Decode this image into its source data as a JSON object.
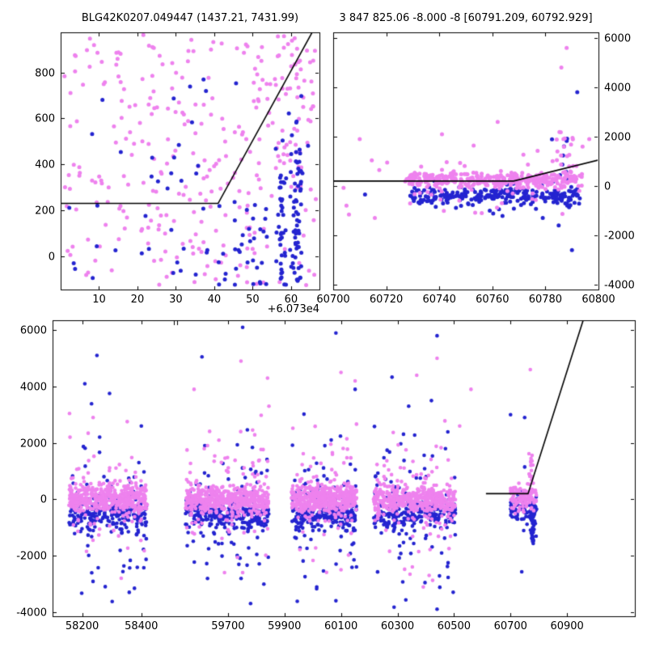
{
  "series_colors": {
    "pink": "#EE82EE",
    "blue": "#2424D0",
    "line": "#000000"
  },
  "chart_data": [
    {
      "id": "zoom-recent-season",
      "type": "scatter",
      "title": "BLG42K0207.049447 (1437.21, 7431.99)",
      "x_offset_label": "+6.073e4",
      "xlim": [
        0,
        67.4
      ],
      "ylim": [
        -145,
        975
      ],
      "xticks": [
        10,
        20,
        30,
        40,
        50,
        60
      ],
      "yticks": [
        0,
        200,
        400,
        600,
        800
      ],
      "ytick_side": "left",
      "model_line": [
        [
          0,
          230
        ],
        [
          41,
          230
        ],
        [
          65.5,
          975
        ]
      ],
      "clusters": [
        {
          "color": "pink",
          "n": 240,
          "xu": [
            0.5,
            66.5
          ],
          "yu": [
            -140,
            965
          ]
        },
        {
          "color": "pink",
          "n": 60,
          "xu": [
            50,
            66
          ],
          "yu": [
            280,
            965
          ]
        },
        {
          "color": "pink",
          "n": 20,
          "xu": [
            36,
            50
          ],
          "yu": [
            120,
            560
          ]
        },
        {
          "color": "blue",
          "n": 28,
          "xu": [
            1,
            40
          ],
          "yu": [
            -140,
            430
          ]
        },
        {
          "color": "blue",
          "n": 10,
          "xu": [
            4,
            46
          ],
          "yu": [
            450,
            790
          ]
        },
        {
          "color": "blue",
          "n": 38,
          "xg": [
            57.3,
            0.7
          ],
          "yu": [
            -140,
            360
          ]
        },
        {
          "color": "blue",
          "n": 55,
          "xg": [
            61.6,
            0.8
          ],
          "yu": [
            -120,
            430
          ]
        },
        {
          "color": "blue",
          "n": 34,
          "xu": [
            41,
            54
          ],
          "yu": [
            -145,
            250
          ]
        },
        {
          "color": "blue",
          "n": 12,
          "xu": [
            55,
            65.5
          ],
          "yu": [
            430,
            700
          ]
        }
      ]
    },
    {
      "id": "zoom-flux-window",
      "type": "scatter",
      "title": "3 847 825.06 -8.000 -8 [60791.209, 60792.929]",
      "xlim": [
        60700,
        60800
      ],
      "ylim": [
        -4200,
        6230
      ],
      "xticks": [
        60700,
        60720,
        60740,
        60760,
        60780,
        60800
      ],
      "yticks": [
        -4000,
        -2000,
        0,
        2000,
        4000,
        6000
      ],
      "ytick_side": "right",
      "model_line": [
        [
          60700,
          200
        ],
        [
          60768,
          200
        ],
        [
          60800,
          1050
        ]
      ],
      "clusters": [
        {
          "color": "blue",
          "n": 215,
          "xu": [
            60729,
            60793
          ],
          "yg": [
            -370,
            180
          ]
        },
        {
          "color": "blue",
          "n": 28,
          "xu": [
            60738,
            60793
          ],
          "yg": [
            -520,
            420
          ]
        },
        {
          "color": "blue",
          "n": 20,
          "xg": [
            60787,
            2.5
          ],
          "yu": [
            -900,
            2000
          ]
        },
        {
          "color": "blue",
          "points": [
            [
              60790,
              -2600
            ],
            [
              60792,
              3800
            ],
            [
              60785,
              -1600
            ],
            [
              60779,
              -1300
            ],
            [
              60712,
              -350
            ]
          ]
        },
        {
          "color": "pink",
          "n": 320,
          "xu": [
            60727,
            60794
          ],
          "yg": [
            240,
            150
          ]
        },
        {
          "color": "pink",
          "n": 42,
          "xu": [
            60727,
            60794
          ],
          "yg": [
            340,
            430
          ]
        },
        {
          "color": "pink",
          "n": 20,
          "xg": [
            60786,
            2.5
          ],
          "yu": [
            200,
            2300
          ]
        },
        {
          "color": "pink",
          "n": 18,
          "xu": [
            60703,
            60799
          ],
          "yu": [
            -1500,
            2200
          ]
        },
        {
          "color": "pink",
          "points": [
            [
              60788,
              5600
            ],
            [
              60786,
              4800
            ],
            [
              60762,
              2600
            ],
            [
              60741,
              2100
            ],
            [
              60794,
              1600
            ],
            [
              60710,
              1900
            ],
            [
              60705,
              -800
            ],
            [
              60756,
              -1100
            ]
          ]
        }
      ]
    },
    {
      "id": "full-lightcurve",
      "type": "scatter",
      "x_segments": [
        [
          58100,
          58510
        ],
        [
          59520,
          61140
        ]
      ],
      "ylim": [
        -4150,
        6350
      ],
      "xticks": [
        58200,
        58400,
        59700,
        59900,
        60100,
        60300,
        60500,
        60700,
        60900
      ],
      "yticks": [
        -4000,
        -2000,
        0,
        2000,
        4000,
        6000
      ],
      "ytick_side": "left",
      "model_line": [
        [
          60613,
          200
        ],
        [
          60762,
          200
        ],
        [
          60965,
          6600
        ]
      ],
      "clusters": [
        {
          "color": "blue",
          "n": 210,
          "xu": [
            58155,
            58420
          ],
          "yg": [
            -550,
            260
          ]
        },
        {
          "color": "blue",
          "n": 80,
          "xu": [
            58155,
            58420
          ],
          "yg": [
            -550,
            1350
          ]
        },
        {
          "color": "blue",
          "n": 240,
          "xu": [
            59550,
            59845
          ],
          "yg": [
            -550,
            260
          ]
        },
        {
          "color": "blue",
          "n": 90,
          "xu": [
            59550,
            59845
          ],
          "yg": [
            -550,
            1400
          ]
        },
        {
          "color": "blue",
          "n": 200,
          "xu": [
            59925,
            60155
          ],
          "yg": [
            -550,
            260
          ]
        },
        {
          "color": "blue",
          "n": 75,
          "xu": [
            59925,
            60155
          ],
          "yg": [
            -550,
            1400
          ]
        },
        {
          "color": "blue",
          "n": 215,
          "xu": [
            60215,
            60505
          ],
          "yg": [
            -550,
            260
          ]
        },
        {
          "color": "blue",
          "n": 85,
          "xu": [
            60215,
            60505
          ],
          "yg": [
            -550,
            1400
          ]
        },
        {
          "color": "blue",
          "n": 70,
          "xu": [
            60700,
            60792
          ],
          "yg": [
            -420,
            180
          ]
        },
        {
          "color": "blue",
          "n": 35,
          "xg": [
            60778,
            4
          ],
          "yu": [
            -1600,
            -100
          ]
        },
        {
          "color": "blue",
          "n": 12,
          "xu": [
            60700,
            60792
          ],
          "yg": [
            -200,
            900
          ]
        },
        {
          "color": "blue",
          "points": [
            [
              58250,
              5100
            ],
            [
              58209,
              4100
            ],
            [
              59752,
              6100
            ],
            [
              60082,
              5900
            ],
            [
              60440,
              5800
            ],
            [
              59608,
              5050
            ],
            [
              60150,
              3900
            ],
            [
              60420,
              3500
            ],
            [
              58278,
              -3100
            ],
            [
              59780,
              -3700
            ],
            [
              60082,
              -3600
            ],
            [
              60440,
              -3900
            ],
            [
              60497,
              -3300
            ],
            [
              60750,
              2900
            ],
            [
              60700,
              3000
            ],
            [
              58400,
              2600
            ]
          ]
        },
        {
          "color": "pink",
          "n": 420,
          "xu": [
            58155,
            58420
          ],
          "yg": [
            0,
            240
          ]
        },
        {
          "color": "pink",
          "n": 80,
          "xu": [
            58155,
            58420
          ],
          "yg": [
            0,
            1000
          ]
        },
        {
          "color": "pink",
          "n": 470,
          "xu": [
            59550,
            59845
          ],
          "yg": [
            0,
            240
          ]
        },
        {
          "color": "pink",
          "n": 95,
          "xu": [
            59550,
            59845
          ],
          "yg": [
            50,
            1100
          ]
        },
        {
          "color": "pink",
          "n": 420,
          "xu": [
            59925,
            60155
          ],
          "yg": [
            0,
            240
          ]
        },
        {
          "color": "pink",
          "n": 85,
          "xu": [
            59925,
            60155
          ],
          "yg": [
            50,
            1100
          ]
        },
        {
          "color": "pink",
          "n": 430,
          "xu": [
            60215,
            60505
          ],
          "yg": [
            0,
            240
          ]
        },
        {
          "color": "pink",
          "n": 90,
          "xu": [
            60215,
            60505
          ],
          "yg": [
            50,
            1100
          ]
        },
        {
          "color": "pink",
          "n": 110,
          "xu": [
            60700,
            60792
          ],
          "yg": [
            30,
            200
          ]
        },
        {
          "color": "pink",
          "n": 22,
          "xg": [
            60772,
            6
          ],
          "yu": [
            250,
            1700
          ]
        },
        {
          "color": "pink",
          "points": [
            [
              58237,
              2900
            ],
            [
              58332,
              -2800
            ],
            [
              59746,
              4900
            ],
            [
              59840,
              4300
            ],
            [
              59580,
              3900
            ],
            [
              59845,
              3300
            ],
            [
              59752,
              -2600
            ],
            [
              60100,
              4500
            ],
            [
              60150,
              4200
            ],
            [
              60100,
              -2500
            ],
            [
              60368,
              4400
            ],
            [
              60440,
              5000
            ],
            [
              60412,
              -2700
            ],
            [
              60520,
              2600
            ],
            [
              60560,
              3900
            ],
            [
              60770,
              4600
            ]
          ]
        }
      ]
    }
  ]
}
